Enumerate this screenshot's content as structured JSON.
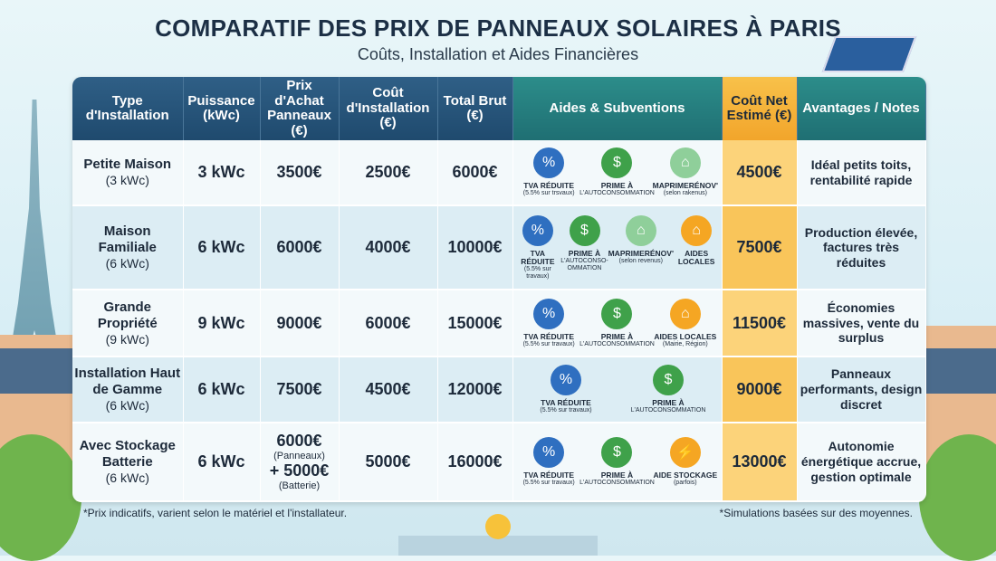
{
  "title": "COMPARATIF DES PRIX DE PANNEAUX SOLAIRES À PARIS",
  "subtitle": "Coûts, Installation et Aides Financières",
  "headers": [
    "Type d'Installation",
    "Puissance (kWc)",
    "Prix d'Achat Panneaux (€)",
    "Coût d'Installation (€)",
    "Total Brut (€)",
    "Aides & Subventions",
    "Coût Net Estimé (€)",
    "Avantages / Notes"
  ],
  "colors": {
    "header": "#1f4a6e",
    "accent": "#f9c55a",
    "teal": "#1f6f73"
  },
  "rows": [
    {
      "type": "Petite Maison",
      "type_sub": "(3 kWc)",
      "power": "3 kWc",
      "price": "3500€",
      "install": "2500€",
      "total": "6000€",
      "net": "4500€",
      "notes": "Idéal petits toits, rentabilité rapide",
      "aids": [
        {
          "icon": "percent-hand-icon",
          "label": "TVA RÉDUITE",
          "sub": "(5.5% sur trsvaux)"
        },
        {
          "icon": "dollar-hand-icon",
          "label": "PRIME À",
          "sub": "L'AUTOCONSOMMATION"
        },
        {
          "icon": "house-icon",
          "label": "MAPRIMERÉNOV'",
          "sub": "(selon rakenus)"
        }
      ]
    },
    {
      "type": "Maison Familiale",
      "type_sub": "(6 kWc)",
      "power": "6 kWc",
      "price": "6000€",
      "install": "4000€",
      "total": "10000€",
      "net": "7500€",
      "notes": "Production élevée, factures très réduites",
      "aids": [
        {
          "icon": "percent-hand-icon",
          "label": "TVA RÉDUITE",
          "sub": "(5.5% sur travaux)"
        },
        {
          "icon": "dollar-hand-icon",
          "label": "PRIME À",
          "sub": "L'AUTOCONSO-OMMATION"
        },
        {
          "icon": "house-icon",
          "label": "MAPRIMERÉNOV'",
          "sub": "(selon revenus)"
        },
        {
          "icon": "local-house-icon",
          "label": "AIDES LOCALES",
          "sub": ""
        }
      ]
    },
    {
      "type": "Grande Propriété",
      "type_sub": "(9 kWc)",
      "power": "9 kWc",
      "price": "9000€",
      "install": "6000€",
      "total": "15000€",
      "net": "11500€",
      "notes": "Économies massives, vente du surplus",
      "aids": [
        {
          "icon": "percent-hand-icon",
          "label": "TVA RÉDUITE",
          "sub": "(5.5% sur travaux)"
        },
        {
          "icon": "dollar-hand-icon",
          "label": "PRIME À",
          "sub": "L'AUTOCONSOMMATION"
        },
        {
          "icon": "local-house-icon",
          "label": "AIDES LOCALES",
          "sub": "(Mairie, Région)"
        }
      ]
    },
    {
      "type": "Installation Haut de Gamme",
      "type_sub": "(6 kWc)",
      "power": "6 kWc",
      "price": "7500€",
      "install": "4500€",
      "total": "12000€",
      "net": "9000€",
      "notes": "Panneaux performants, design discret",
      "aids": [
        {
          "icon": "percent-hand-icon",
          "label": "TVA RÉDUITE",
          "sub": "(5.5% sur travaux)"
        },
        {
          "icon": "dollar-hand-icon",
          "label": "PRIME À",
          "sub": "L'AUTOCONSOMMATION"
        }
      ]
    },
    {
      "type": "Avec Stockage Batterie",
      "type_sub": "(6 kWc)",
      "power": "6 kWc",
      "price": "6000€",
      "price_sub": "(Panneaux)",
      "price2": "+ 5000€",
      "price2_sub": "(Batterie)",
      "install": "5000€",
      "total": "16000€",
      "net": "13000€",
      "notes": "Autonomie énergétique accrue, gestion optimale",
      "aids": [
        {
          "icon": "percent-hand-icon",
          "label": "TVA RÉDUITE",
          "sub": "(5.5% sur travaux)"
        },
        {
          "icon": "dollar-hand-icon",
          "label": "PRIME À",
          "sub": "L'AUTOCONSOMMATION"
        },
        {
          "icon": "battery-icon",
          "label": "AIDE STOCKAGE",
          "sub": "(parfois)"
        }
      ]
    }
  ],
  "footnote_left": "*Prix indicatifs, varient selon le matériel et l'installateur.",
  "footnote_right": "*Simulations basées sur des moyennes."
}
